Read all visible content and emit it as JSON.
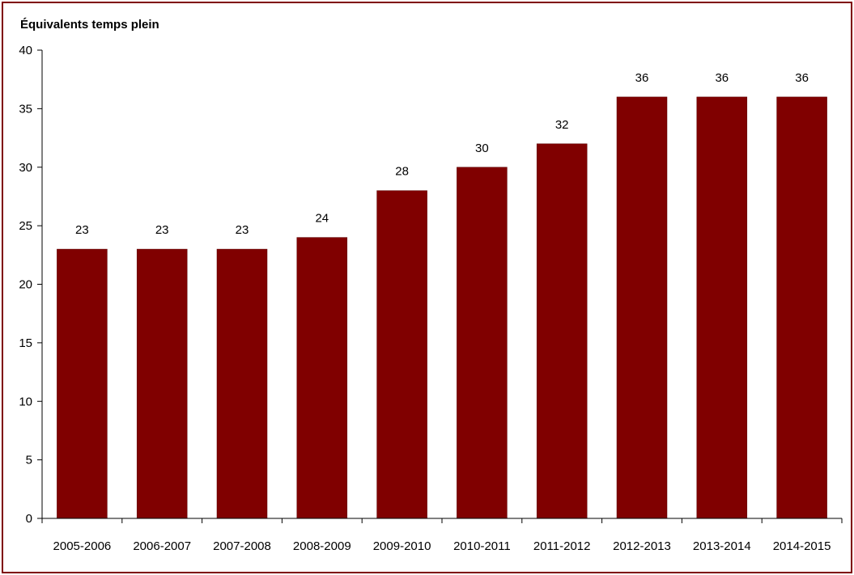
{
  "chart_data": {
    "type": "bar",
    "title": "",
    "xlabel": "",
    "ylabel": "Équivalents temps plein",
    "categories": [
      "2005-2006",
      "2006-2007",
      "2007-2008",
      "2008-2009",
      "2009-2010",
      "2010-2011",
      "2011-2012",
      "2012-2013",
      "2013-2014",
      "2014-2015"
    ],
    "values": [
      23,
      23,
      23,
      24,
      28,
      30,
      32,
      36,
      36,
      36
    ],
    "data_labels": [
      "23",
      "23",
      "23",
      "24",
      "28",
      "30",
      "32",
      "36",
      "36",
      "36"
    ],
    "ylim": [
      0,
      40
    ],
    "yticks": [
      0,
      5,
      10,
      15,
      20,
      25,
      30,
      35,
      40
    ],
    "grid": false,
    "legend": "none",
    "bar_color": "#800000",
    "border_color": "#7f0000"
  }
}
